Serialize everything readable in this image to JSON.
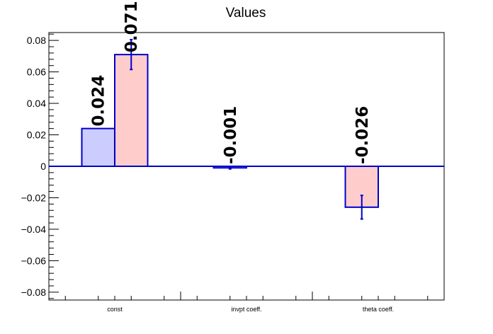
{
  "chart_data": {
    "type": "bar",
    "title": "Values",
    "xlabel": "",
    "ylabel": "",
    "ylim": [
      -0.085,
      0.085
    ],
    "yticks": [
      -0.08,
      -0.06,
      -0.04,
      -0.02,
      0,
      0.02,
      0.04,
      0.06,
      0.08
    ],
    "ytick_labels": [
      "−0.08",
      "−0.06",
      "−0.04",
      "−0.02",
      "0",
      "0.02",
      "0.04",
      "0.06",
      "0.08"
    ],
    "categories": [
      "const",
      "invpt coeff.",
      "theta coeff."
    ],
    "grid": false,
    "legend": "none",
    "bars": [
      {
        "category_index": 0,
        "slot": 0,
        "value": 0.024,
        "error": 0,
        "label": "0.024",
        "color": "#ccccff"
      },
      {
        "category_index": 0,
        "slot": 1,
        "value": 0.071,
        "error": 0.0095,
        "label": "0.071",
        "color": "#ffcccc"
      },
      {
        "category_index": 1,
        "slot": 0,
        "value": -0.001,
        "error": 0.0007,
        "label": "-0.001",
        "color": "#ccccff"
      },
      {
        "category_index": 2,
        "slot": 0,
        "value": -0.026,
        "error": 0.0075,
        "label": "-0.026",
        "color": "#ffcccc"
      }
    ],
    "colors": {
      "outline": "#0000cc",
      "frame": "#000000"
    }
  }
}
